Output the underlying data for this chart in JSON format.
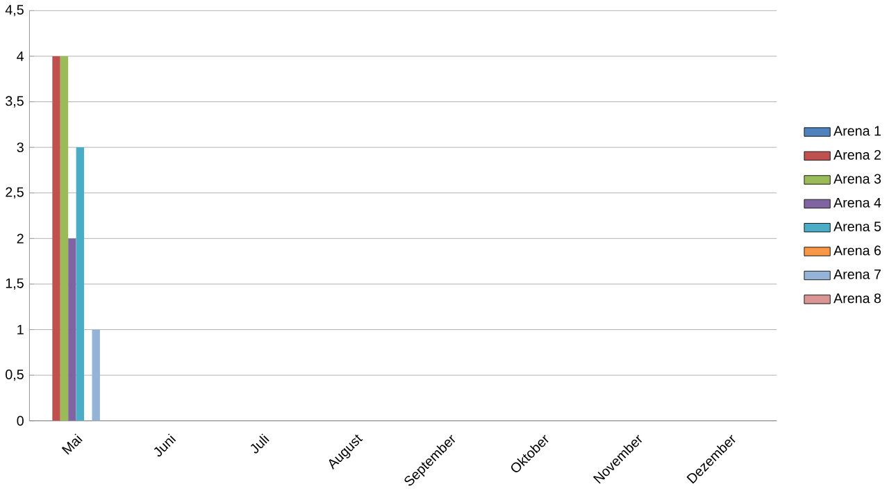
{
  "chart_data": {
    "type": "bar",
    "categories": [
      "Mai",
      "Juni",
      "Juli",
      "August",
      "September",
      "Oktober",
      "November",
      "Dezember"
    ],
    "series": [
      {
        "name": "Arena 1",
        "color": "#4f81bd",
        "values": [
          null,
          null,
          null,
          null,
          null,
          null,
          null,
          null
        ]
      },
      {
        "name": "Arena 2",
        "color": "#c0504d",
        "values": [
          4,
          null,
          null,
          null,
          null,
          null,
          null,
          null
        ]
      },
      {
        "name": "Arena 3",
        "color": "#9bbb59",
        "values": [
          4,
          null,
          null,
          null,
          null,
          null,
          null,
          null
        ]
      },
      {
        "name": "Arena 4",
        "color": "#8064a2",
        "values": [
          2,
          null,
          null,
          null,
          null,
          null,
          null,
          null
        ]
      },
      {
        "name": "Arena 5",
        "color": "#4bacc6",
        "values": [
          3,
          null,
          null,
          null,
          null,
          null,
          null,
          null
        ]
      },
      {
        "name": "Arena 6",
        "color": "#f79646",
        "values": [
          null,
          null,
          null,
          null,
          null,
          null,
          null,
          null
        ]
      },
      {
        "name": "Arena 7",
        "color": "#95b3d7",
        "values": [
          1,
          null,
          null,
          null,
          null,
          null,
          null,
          null
        ]
      },
      {
        "name": "Arena 8",
        "color": "#d99694",
        "values": [
          null,
          null,
          null,
          null,
          null,
          null,
          null,
          null
        ]
      }
    ],
    "ylim": [
      0,
      4.5
    ],
    "yticks": [
      0,
      {
        "value": 0.5,
        "label": "0,5"
      },
      1,
      {
        "value": 1.5,
        "label": "1,5"
      },
      2,
      {
        "value": 2.5,
        "label": "2,5"
      },
      3,
      {
        "value": 3.5,
        "label": "3,5"
      },
      4,
      {
        "value": 4.5,
        "label": "4,5"
      }
    ],
    "grid": "y",
    "legend": "right"
  }
}
